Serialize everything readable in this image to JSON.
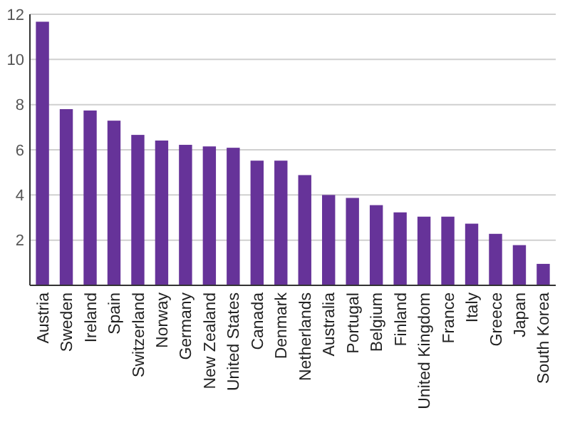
{
  "chart_data": {
    "type": "bar",
    "categories": [
      "Austria",
      "Sweden",
      "Ireland",
      "Spain",
      "Switzerland",
      "Norway",
      "Germany",
      "New Zealand",
      "United States",
      "Canada",
      "Denmark",
      "Netherlands",
      "Australia",
      "Portugal",
      "Belgium",
      "Finland",
      "United Kingdom",
      "France",
      "Italy",
      "Greece",
      "Japan",
      "South Korea"
    ],
    "values": [
      11.67,
      7.8,
      7.74,
      7.29,
      6.66,
      6.41,
      6.22,
      6.15,
      6.09,
      5.52,
      5.52,
      4.88,
      4.0,
      3.87,
      3.55,
      3.23,
      3.04,
      3.04,
      2.73,
      2.28,
      1.78,
      0.95
    ],
    "color": "#663399",
    "ylim": [
      0,
      12
    ],
    "yticks": [
      2,
      4,
      6,
      8,
      10,
      12
    ],
    "grid": "y"
  }
}
